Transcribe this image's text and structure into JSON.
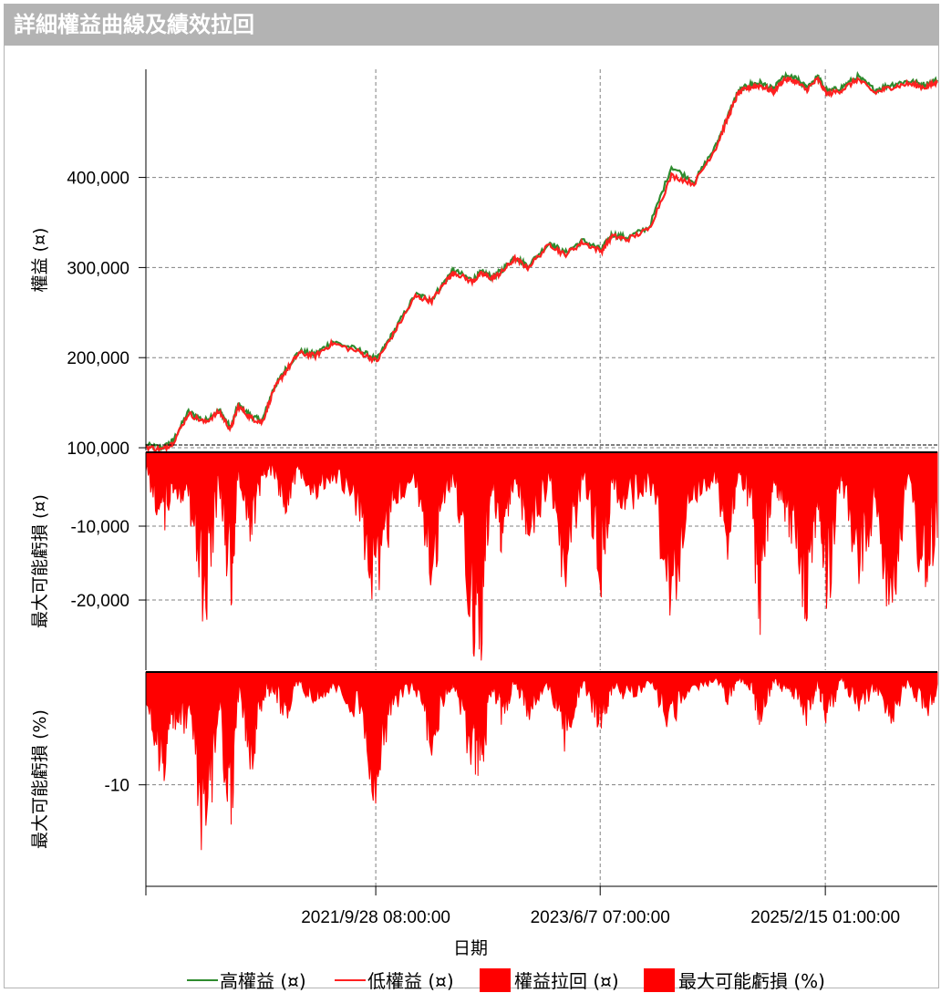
{
  "title": "詳細權益曲線及績效拉回",
  "colors": {
    "high": "#2e8b2e",
    "low": "#ff2020",
    "fill": "#ff0000",
    "grid": "#808080"
  },
  "chart_data": {
    "type": "line",
    "xlabel": "日期",
    "x_ticks": [
      "2021/9/28 08:00:00",
      "2023/6/7 07:00:00",
      "2025/2/15 01:00:00"
    ],
    "x_range": [
      "2020-01-05",
      "2025-12-20"
    ],
    "panels": [
      {
        "ylabel": "權益 (¤)",
        "ylim": [
          97000,
          520000
        ],
        "yticks": [
          100000,
          200000,
          300000,
          400000
        ],
        "ytick_labels": [
          "100,000",
          "200,000",
          "300,000",
          "400,000"
        ],
        "series": [
          {
            "name": "高權益 (¤)",
            "type": "line"
          },
          {
            "name": "低權益 (¤)",
            "type": "line"
          }
        ],
        "x": [
          "2020-01-05",
          "2020-02-20",
          "2020-03-20",
          "2020-05-01",
          "2020-06-15",
          "2020-07-25",
          "2020-08-25",
          "2020-09-15",
          "2020-10-20",
          "2020-11-20",
          "2020-12-20",
          "2021-01-20",
          "2021-03-01",
          "2021-04-15",
          "2021-06-01",
          "2021-08-15",
          "2021-10-01",
          "2021-11-15",
          "2022-01-15",
          "2022-03-01",
          "2022-04-15",
          "2022-05-01",
          "2022-06-20",
          "2022-07-15",
          "2022-08-15",
          "2022-09-10",
          "2022-10-15",
          "2022-11-20",
          "2023-01-20",
          "2023-03-01",
          "2023-04-20",
          "2023-06-10",
          "2023-07-10",
          "2023-08-20",
          "2023-10-20",
          "2023-12-20",
          "2024-02-20",
          "2024-04-20",
          "2024-05-25",
          "2024-06-20",
          "2024-07-20",
          "2024-08-20",
          "2024-09-25",
          "2024-10-25",
          "2024-11-25",
          "2024-12-25",
          "2025-01-25",
          "2025-02-20",
          "2025-04-01",
          "2025-05-15",
          "2025-07-01",
          "2025-08-15",
          "2025-10-01",
          "2025-11-15",
          "2025-12-20"
        ],
        "values": [
          103000,
          100000,
          108000,
          140000,
          130000,
          142000,
          122000,
          148000,
          135000,
          130000,
          165000,
          185000,
          207000,
          204000,
          218000,
          208000,
          198000,
          228000,
          270000,
          265000,
          290000,
          297000,
          286000,
          295000,
          290000,
          297000,
          312000,
          302000,
          328000,
          316000,
          330000,
          320000,
          337000,
          333000,
          345000,
          412000,
          395000,
          435000,
          470000,
          495000,
          503000,
          505000,
          498000,
          512000,
          510000,
          500000,
          512000,
          495000,
          500000,
          512000,
          497000,
          503000,
          507000,
          503000,
          508000
        ],
        "values_low": [
          101000,
          98000,
          106000,
          138000,
          128000,
          140000,
          120000,
          146000,
          133000,
          128000,
          163000,
          183000,
          205000,
          202000,
          216000,
          206000,
          196000,
          226000,
          268000,
          263000,
          288000,
          295000,
          284000,
          293000,
          288000,
          295000,
          310000,
          300000,
          326000,
          314000,
          328000,
          318000,
          335000,
          331000,
          343000,
          402000,
          393000,
          433000,
          468000,
          493000,
          500000,
          502000,
          495000,
          509000,
          507000,
          497000,
          509000,
          492000,
          497000,
          509000,
          494000,
          500000,
          504000,
          500000,
          505000
        ]
      },
      {
        "ylabel": "最大可能虧損 (¤)",
        "ylim": [
          -29500,
          0
        ],
        "yticks": [
          -10000,
          -20000
        ],
        "ytick_labels": [
          "-10,000",
          "-20,000"
        ],
        "series": [
          {
            "name": "權益拉回 (¤)",
            "type": "area"
          }
        ],
        "x": [
          "2020-01-05",
          "2020-02-20",
          "2020-03-20",
          "2020-05-01",
          "2020-06-15",
          "2020-07-25",
          "2020-08-25",
          "2020-09-15",
          "2020-10-20",
          "2020-11-20",
          "2020-12-20",
          "2021-01-20",
          "2021-03-01",
          "2021-04-15",
          "2021-06-01",
          "2021-08-15",
          "2021-10-01",
          "2021-11-15",
          "2022-01-15",
          "2022-03-01",
          "2022-04-15",
          "2022-05-01",
          "2022-06-20",
          "2022-07-15",
          "2022-08-15",
          "2022-09-10",
          "2022-10-15",
          "2022-11-20",
          "2023-01-20",
          "2023-03-01",
          "2023-04-20",
          "2023-06-10",
          "2023-07-10",
          "2023-08-20",
          "2023-10-20",
          "2023-12-20",
          "2024-02-20",
          "2024-04-20",
          "2024-05-25",
          "2024-06-20",
          "2024-07-20",
          "2024-08-20",
          "2024-09-25",
          "2024-10-25",
          "2024-11-25",
          "2024-12-25",
          "2025-01-25",
          "2025-02-20",
          "2025-04-01",
          "2025-05-15",
          "2025-07-01",
          "2025-08-15",
          "2025-10-01",
          "2025-11-15",
          "2025-12-20"
        ],
        "values": [
          -3000,
          -12000,
          -6000,
          -8000,
          -26000,
          -5000,
          -24000,
          -4000,
          -13000,
          -4000,
          -3000,
          -9000,
          -3000,
          -7000,
          -4000,
          -10000,
          -27000,
          -8000,
          -5000,
          -21000,
          -6000,
          -4000,
          -28000,
          -29000,
          -6000,
          -15000,
          -4000,
          -14000,
          -5000,
          -24000,
          -4000,
          -20000,
          -6000,
          -9000,
          -5000,
          -24000,
          -7000,
          -5000,
          -16000,
          -4000,
          -8000,
          -26000,
          -6000,
          -10000,
          -14000,
          -25000,
          -8000,
          -26000,
          -4000,
          -22000,
          -9000,
          -26000,
          -5000,
          -24000,
          -12000
        ]
      },
      {
        "ylabel": "最大可能虧損 (%)",
        "ylim": [
          -19,
          0
        ],
        "yticks": [
          -10
        ],
        "ytick_labels": [
          "-10"
        ],
        "series": [
          {
            "name": "最大可能虧損 (%)",
            "type": "area"
          }
        ],
        "x": [
          "2020-01-05",
          "2020-02-20",
          "2020-03-20",
          "2020-05-01",
          "2020-06-15",
          "2020-07-25",
          "2020-08-25",
          "2020-09-15",
          "2020-10-20",
          "2020-11-20",
          "2020-12-20",
          "2021-01-20",
          "2021-03-01",
          "2021-04-15",
          "2021-06-01",
          "2021-08-15",
          "2021-10-01",
          "2021-11-15",
          "2022-01-15",
          "2022-03-01",
          "2022-04-15",
          "2022-05-01",
          "2022-06-20",
          "2022-07-15",
          "2022-08-15",
          "2022-09-10",
          "2022-10-15",
          "2022-11-20",
          "2023-01-20",
          "2023-03-01",
          "2023-04-20",
          "2023-06-10",
          "2023-07-10",
          "2023-08-20",
          "2023-10-20",
          "2023-12-20",
          "2024-02-20",
          "2024-04-20",
          "2024-05-25",
          "2024-06-20",
          "2024-07-20",
          "2024-08-20",
          "2024-09-25",
          "2024-10-25",
          "2024-11-25",
          "2024-12-25",
          "2025-01-25",
          "2025-02-20",
          "2025-04-01",
          "2025-05-15",
          "2025-07-01",
          "2025-08-15",
          "2025-10-01",
          "2025-11-15",
          "2025-12-20"
        ],
        "values": [
          -3000,
          -12000,
          -6000,
          -8000,
          -26000,
          -5000,
          -24000,
          -4000,
          -13000,
          -4000,
          -3000,
          -9000,
          -3000,
          -7000,
          -4000,
          -10000,
          -27000,
          -8000,
          -5000,
          -21000,
          -6000,
          -4000,
          -28000,
          -29000,
          -6000,
          -15000,
          -4000,
          -14000,
          -5000,
          -24000,
          -4000,
          -20000,
          -6000,
          -9000,
          -5000,
          -24000,
          -7000,
          -5000,
          -16000,
          -4000,
          -8000,
          -26000,
          -6000,
          -10000,
          -14000,
          -25000,
          -8000,
          -26000,
          -4000,
          -22000,
          -9000,
          -26000,
          -5000,
          -24000,
          -12000
        ],
        "divide_by_equity_percent": true
      }
    ],
    "legend": [
      "高權益 (¤)",
      "低權益 (¤)",
      "權益拉回 (¤)",
      "最大可能虧損 (%)"
    ],
    "legend_position": "bottom",
    "grid": true
  }
}
